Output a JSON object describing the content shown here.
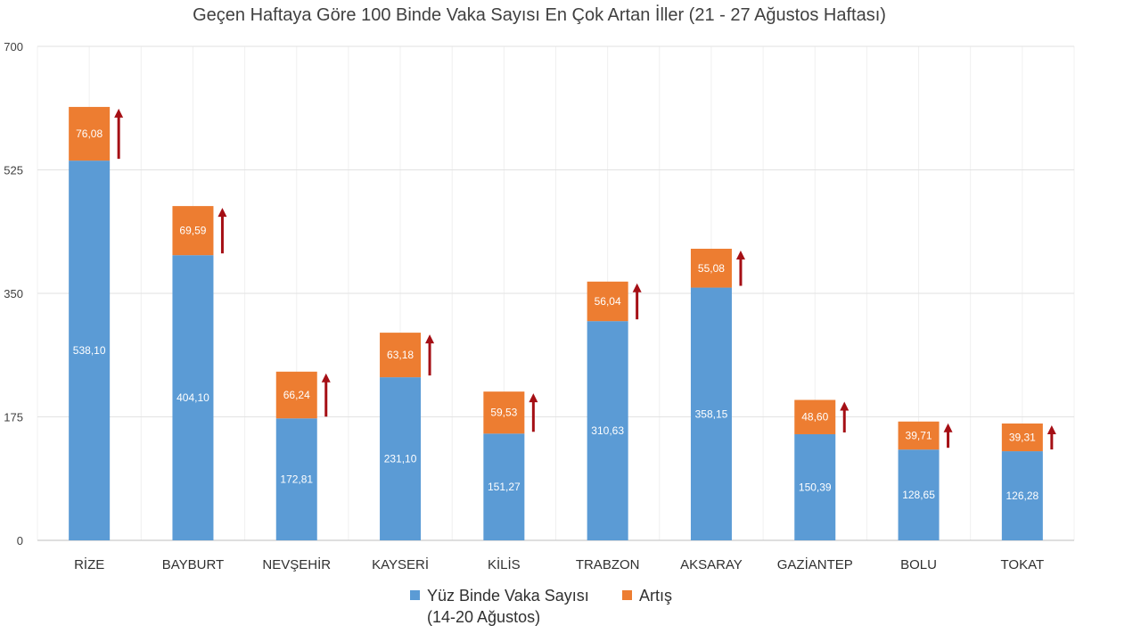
{
  "chart_data": {
    "type": "bar",
    "stacked": true,
    "title": "Geçen Haftaya Göre 100 Binde Vaka Sayısı En Çok Artan İller (21 - 27 Ağustos Haftası)",
    "categories": [
      "RİZE",
      "BAYBURT",
      "NEVŞEHİR",
      "KAYSERİ",
      "KİLİS",
      "TRABZON",
      "AKSARAY",
      "GAZİANTEP",
      "BOLU",
      "TOKAT"
    ],
    "series": [
      {
        "name": "Yüz Binde Vaka Sayısı (14-20 Ağustos)",
        "name_lines": [
          "Yüz Binde Vaka Sayısı",
          "(14-20 Ağustos)"
        ],
        "color": "#5b9bd5",
        "values": [
          538.1,
          404.1,
          172.81,
          231.1,
          151.27,
          310.63,
          358.15,
          150.39,
          128.65,
          126.28
        ],
        "labels": [
          "538,10",
          "404,10",
          "172,81",
          "231,10",
          "151,27",
          "310,63",
          "358,15",
          "150,39",
          "128,65",
          "126,28"
        ]
      },
      {
        "name": "Artış",
        "name_lines": [
          "Artış"
        ],
        "color": "#ed7d31",
        "values": [
          76.08,
          69.59,
          66.24,
          63.18,
          59.53,
          56.04,
          55.08,
          48.6,
          39.71,
          39.31
        ],
        "labels": [
          "76,08",
          "69,59",
          "66,24",
          "63,18",
          "59,53",
          "56,04",
          "55,08",
          "48,60",
          "39,71",
          "39,31"
        ]
      }
    ],
    "ylim": [
      0,
      700
    ],
    "yticks": [
      0,
      175,
      350,
      525,
      700
    ],
    "grid": true,
    "arrow_color": "#a50f15",
    "legend_position": "bottom",
    "xlabel": "",
    "ylabel": ""
  }
}
